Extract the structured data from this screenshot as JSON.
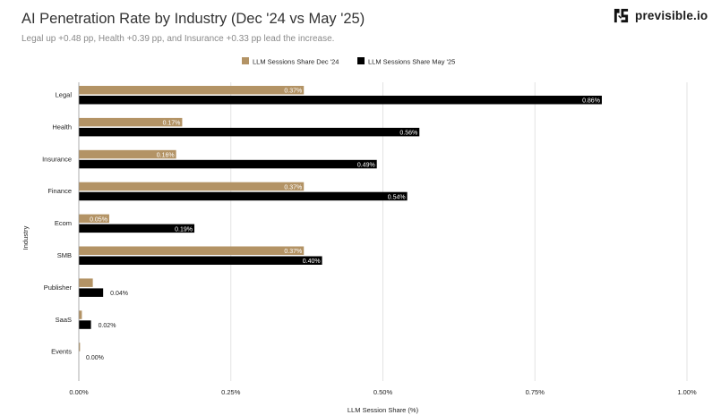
{
  "header": {
    "title": "AI Penetration Rate by Industry (Dec '24 vs May '25)",
    "subtitle": "Legal up +0.48 pp, Health +0.39 pp, and Insurance +0.33 pp lead the increase.",
    "brand": "previsible.io"
  },
  "colors": {
    "dec": "#b39365",
    "may": "#000000"
  },
  "chart_data": {
    "type": "bar",
    "orientation": "horizontal",
    "categories": [
      "Legal",
      "Health",
      "Insurance",
      "Finance",
      "Ecom",
      "SMB",
      "Publisher",
      "SaaS",
      "Events"
    ],
    "series": [
      {
        "name": "LLM Sessions Share Dec '24",
        "values": [
          0.37,
          0.17,
          0.16,
          0.37,
          0.05,
          0.37,
          0.023,
          0.005,
          0.002
        ],
        "labels": [
          "0.37%",
          "0.17%",
          "0.16%",
          "0.37%",
          "0.05%",
          "0.37%",
          "",
          "",
          ""
        ]
      },
      {
        "name": "LLM Sessions Share May '25",
        "values": [
          0.86,
          0.56,
          0.49,
          0.54,
          0.19,
          0.4,
          0.04,
          0.02,
          0.0
        ],
        "labels": [
          "0.86%",
          "0.56%",
          "0.49%",
          "0.54%",
          "0.19%",
          "0.40%",
          "0.04%",
          "0.02%",
          "0.00%"
        ]
      }
    ],
    "xlabel": "LLM Session Share (%)",
    "ylabel": "Industry",
    "xlim": [
      0,
      1.0
    ],
    "xticks": [
      0,
      0.25,
      0.5,
      0.75,
      1.0
    ],
    "xtick_labels": [
      "0.00%",
      "0.25%",
      "0.50%",
      "0.75%",
      "1.00%"
    ],
    "grid": "vertical",
    "legend_position": "top-center"
  }
}
